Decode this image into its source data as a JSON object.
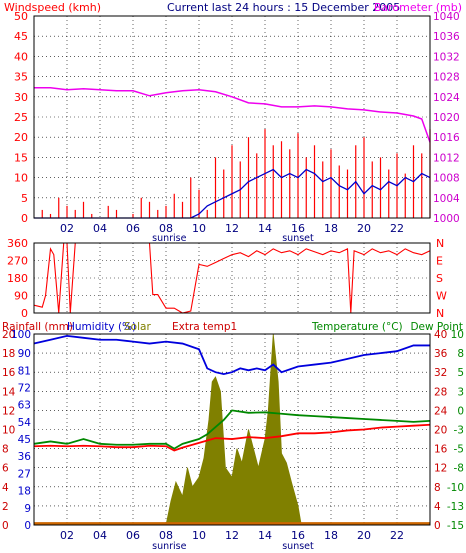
{
  "title": "Current last 24 hours : 15 December 2005",
  "colors": {
    "wind": "#ff0000",
    "gust_bar": "#ff0000",
    "avg_wind": "#0000cc",
    "barometer": "#ee00ee",
    "direction": "#ff0000",
    "humidity": "#0000dd",
    "temperature": "#ff0000",
    "dewpoint": "#008800",
    "solar": "#808000",
    "rain": "#cc6600",
    "rainfall_label": "#cc0000",
    "humidity_label": "#0000cc",
    "solar_label": "#808000",
    "extra_label": "#cc0000",
    "temp_axis": "#cc0000",
    "dew_axis": "#008800",
    "axis": "#000000",
    "grid": "#000000",
    "hour_label": "#000080",
    "sun_label": "#000080",
    "baro_label": "#cc00cc",
    "wind_label": "#ff0000",
    "dir_label": "#ff0000"
  },
  "chart_data": [
    {
      "id": "wind_barometer",
      "type": "line",
      "left_label": "Windspeed (kmh)",
      "right_label": "Barometer (mb)",
      "y_left": {
        "range": [
          0,
          50
        ],
        "ticks": [
          "0",
          "5",
          "10",
          "15",
          "20",
          "25",
          "30",
          "35",
          "40",
          "45",
          "50"
        ]
      },
      "y_right": {
        "range": [
          1000,
          1040
        ],
        "ticks": [
          "1000",
          "1004",
          "1008",
          "1012",
          "1016",
          "1020",
          "1024",
          "1028",
          "1032",
          "1036",
          "1040"
        ]
      },
      "x": {
        "range": [
          0,
          24
        ],
        "ticks": [
          "02",
          "04",
          "06",
          "08",
          "10",
          "12",
          "14",
          "16",
          "18",
          "20",
          "22"
        ],
        "tick_hours": [
          2,
          4,
          6,
          8,
          10,
          12,
          14,
          16,
          18,
          20,
          22
        ]
      },
      "sun_labels": [
        {
          "text": "sunrise",
          "hour": 8.2
        },
        {
          "text": "sunset",
          "hour": 16.0
        }
      ],
      "series": [
        {
          "name": "Windspeed (kmh)",
          "kind": "gust",
          "x": [
            0,
            0.5,
            1,
            1.5,
            2,
            2.5,
            3,
            3.5,
            4,
            4.5,
            5,
            5.5,
            6,
            6.5,
            7,
            7.5,
            8,
            8.5,
            9,
            9.5,
            10,
            10.5,
            11,
            11.5,
            12,
            12.5,
            13,
            13.5,
            14,
            14.5,
            15,
            15.5,
            16,
            16.5,
            17,
            17.5,
            18,
            18.5,
            19,
            19.5,
            20,
            20.5,
            21,
            21.5,
            22,
            22.5,
            23,
            23.5,
            24
          ],
          "values": [
            0,
            2,
            1,
            5,
            3,
            2,
            4,
            1,
            0,
            3,
            2,
            0,
            1,
            5,
            4,
            2,
            3,
            6,
            4,
            10,
            7,
            2,
            15,
            12,
            18,
            14,
            20,
            16,
            22,
            18,
            19,
            17,
            21,
            15,
            18,
            14,
            17,
            13,
            12,
            18,
            20,
            14,
            15,
            12,
            16,
            11,
            18,
            16,
            22
          ]
        },
        {
          "name": "Average wind",
          "kind": "avg",
          "x": [
            0,
            1,
            2,
            3,
            4,
            5,
            6,
            7,
            8,
            9,
            9.5,
            10,
            10.5,
            11,
            11.5,
            12,
            12.5,
            13,
            13.5,
            14,
            14.5,
            15,
            15.5,
            16,
            16.5,
            17,
            17.5,
            18,
            18.5,
            19,
            19.5,
            20,
            20.5,
            21,
            21.5,
            22,
            22.5,
            23,
            23.5,
            24
          ],
          "values": [
            0,
            0,
            0,
            0,
            0,
            0,
            0,
            0,
            0,
            0,
            0,
            1,
            3,
            4,
            5,
            6,
            7,
            9,
            10,
            11,
            12,
            10,
            11,
            10,
            12,
            11,
            9,
            10,
            8,
            7,
            9,
            6,
            8,
            7,
            9,
            8,
            10,
            9,
            11,
            10
          ]
        },
        {
          "name": "Barometer (mb)",
          "kind": "baro",
          "x": [
            0,
            1,
            2,
            3,
            4,
            5,
            6,
            7,
            8,
            9,
            10,
            11,
            12,
            13,
            14,
            15,
            16,
            17,
            18,
            19,
            20,
            21,
            22,
            23,
            23.5,
            24
          ],
          "values": [
            1025.8,
            1025.8,
            1025.4,
            1025.6,
            1025.4,
            1025.2,
            1025.2,
            1024.2,
            1024.8,
            1025.2,
            1025.4,
            1025,
            1024,
            1022.8,
            1022.6,
            1022,
            1022,
            1022.2,
            1022,
            1021.6,
            1021.4,
            1021,
            1020.8,
            1020.2,
            1019.6,
            1015
          ]
        }
      ]
    },
    {
      "id": "wind_direction",
      "type": "line",
      "y_left": {
        "range": [
          0,
          360
        ],
        "ticks": [
          "0",
          "90",
          "180",
          "270",
          "360"
        ]
      },
      "y_right": {
        "ticks": [
          "N",
          "E",
          "S",
          "W",
          "N"
        ]
      },
      "x": {
        "range": [
          0,
          24
        ]
      },
      "series": [
        {
          "name": "Wind direction",
          "x": [
            0,
            0.5,
            0.7,
            1,
            1.2,
            1.5,
            1.8,
            2,
            2.2,
            2.5,
            3,
            4,
            5,
            6,
            7,
            7.2,
            7.5,
            8,
            8.5,
            9,
            9.5,
            10,
            10.5,
            11,
            11.5,
            12,
            12.5,
            13,
            13.5,
            14,
            14.5,
            15,
            15.5,
            16,
            16.5,
            17,
            17.5,
            18,
            18.5,
            19,
            19.2,
            19.4,
            20,
            20.5,
            21,
            21.5,
            22,
            22.5,
            23,
            23.5,
            24
          ],
          "values": [
            40,
            30,
            90,
            330,
            300,
            0,
            360,
            360,
            0,
            360,
            360,
            360,
            360,
            360,
            360,
            95,
            95,
            25,
            25,
            0,
            10,
            250,
            240,
            260,
            280,
            300,
            310,
            290,
            320,
            300,
            330,
            310,
            320,
            300,
            330,
            315,
            300,
            320,
            310,
            330,
            0,
            320,
            300,
            330,
            310,
            320,
            300,
            330,
            310,
            300,
            320
          ]
        }
      ]
    },
    {
      "id": "humidity_temp_solar",
      "type": "line",
      "labels": {
        "rainfall": "Rainfall (mm)",
        "humidity": "Humidity (%)",
        "solar": "Solar",
        "extra": "Extra temp1",
        "temperature": "Temperature (°C)",
        "dewpoint": "Dew Point"
      },
      "y_rain": {
        "ticks": [
          "0",
          "2",
          "4",
          "6",
          "8",
          "10",
          "12",
          "14",
          "16",
          "18",
          "20"
        ]
      },
      "y_humidity": {
        "range": [
          0,
          100
        ],
        "ticks": [
          "0",
          "9",
          "18",
          "27",
          "36",
          "45",
          "54",
          "63",
          "72",
          "81",
          "90",
          "100"
        ]
      },
      "y_temp": {
        "range": [
          0,
          40
        ],
        "ticks": [
          "0",
          "4",
          "8",
          "12",
          "16",
          "20",
          "24",
          "28",
          "32",
          "36",
          "40"
        ]
      },
      "y_dew": {
        "ticks": [
          "-15",
          "-13",
          "-10",
          "-8",
          "-5",
          "-3",
          "0",
          "3",
          "5",
          "8",
          "10"
        ]
      },
      "x": {
        "range": [
          0,
          24
        ],
        "ticks": [
          "02",
          "04",
          "06",
          "08",
          "10",
          "12",
          "14",
          "16",
          "18",
          "20",
          "22"
        ],
        "tick_hours": [
          2,
          4,
          6,
          8,
          10,
          12,
          14,
          16,
          18,
          20,
          22
        ]
      },
      "sun_labels": [
        {
          "text": "sunrise",
          "hour": 8.2
        },
        {
          "text": "sunset",
          "hour": 16.0
        }
      ],
      "series": [
        {
          "name": "Humidity (%)",
          "axis": "humidity",
          "x": [
            0,
            1,
            2,
            3,
            4,
            5,
            6,
            7,
            8,
            9,
            10,
            10.5,
            11,
            11.5,
            12,
            12.5,
            13,
            13.5,
            14,
            14.5,
            15,
            16,
            17,
            18,
            19,
            20,
            21,
            22,
            23,
            24
          ],
          "values": [
            95,
            97,
            99,
            98,
            97,
            97,
            96,
            95,
            96,
            95,
            92,
            82,
            80,
            79,
            80,
            82,
            81,
            82,
            81,
            84,
            80,
            83,
            84,
            85,
            87,
            89,
            90,
            91,
            94,
            94
          ]
        },
        {
          "name": "Dew Point",
          "axis": "temp",
          "x": [
            0,
            1,
            2,
            3,
            4,
            5,
            6,
            7,
            8,
            8.5,
            9,
            10,
            10.5,
            11,
            11.5,
            12,
            13,
            14,
            15,
            16,
            17,
            18,
            19,
            20,
            21,
            22,
            23,
            24
          ],
          "values": [
            17,
            17.5,
            17,
            18,
            17,
            16.8,
            16.8,
            17,
            17,
            16,
            17,
            18,
            19,
            20.5,
            22,
            24,
            23.5,
            23.6,
            23.3,
            23,
            22.8,
            22.6,
            22.4,
            22.2,
            22,
            21.8,
            21.6,
            21.8
          ]
        },
        {
          "name": "Temperature (°C)",
          "axis": "temp",
          "x": [
            0,
            1,
            2,
            3,
            4,
            5,
            6,
            7,
            8,
            8.5,
            9,
            10,
            11,
            12,
            13,
            14,
            15,
            16,
            17,
            18,
            19,
            20,
            21,
            22,
            23,
            24
          ],
          "values": [
            16.5,
            16.6,
            16.5,
            16.6,
            16.5,
            16.3,
            16.3,
            16.6,
            16.5,
            15.6,
            16.2,
            17.2,
            18.2,
            18,
            18.4,
            18.2,
            18.6,
            19.2,
            19.2,
            19.4,
            19.8,
            20,
            20.4,
            20.6,
            20.8,
            21
          ]
        },
        {
          "name": "Solar",
          "axis": "temp",
          "x": [
            8,
            8.3,
            8.6,
            9,
            9.3,
            9.6,
            10,
            10.3,
            10.6,
            10.8,
            11,
            11.3,
            11.6,
            12,
            12.3,
            12.6,
            13,
            13.3,
            13.6,
            14,
            14.2,
            14.5,
            14.8,
            15,
            15.3,
            15.6,
            16,
            16.2
          ],
          "values": [
            0,
            5,
            9,
            6,
            12,
            8,
            10,
            14,
            22,
            30,
            31,
            28,
            12,
            10,
            16,
            13,
            20,
            16,
            12,
            18,
            24,
            40,
            30,
            15,
            13,
            9,
            4,
            0
          ]
        },
        {
          "name": "Rainfall (mm)",
          "axis": "temp",
          "x": [
            0,
            24
          ],
          "values": [
            0.6,
            0.6
          ]
        }
      ]
    }
  ]
}
